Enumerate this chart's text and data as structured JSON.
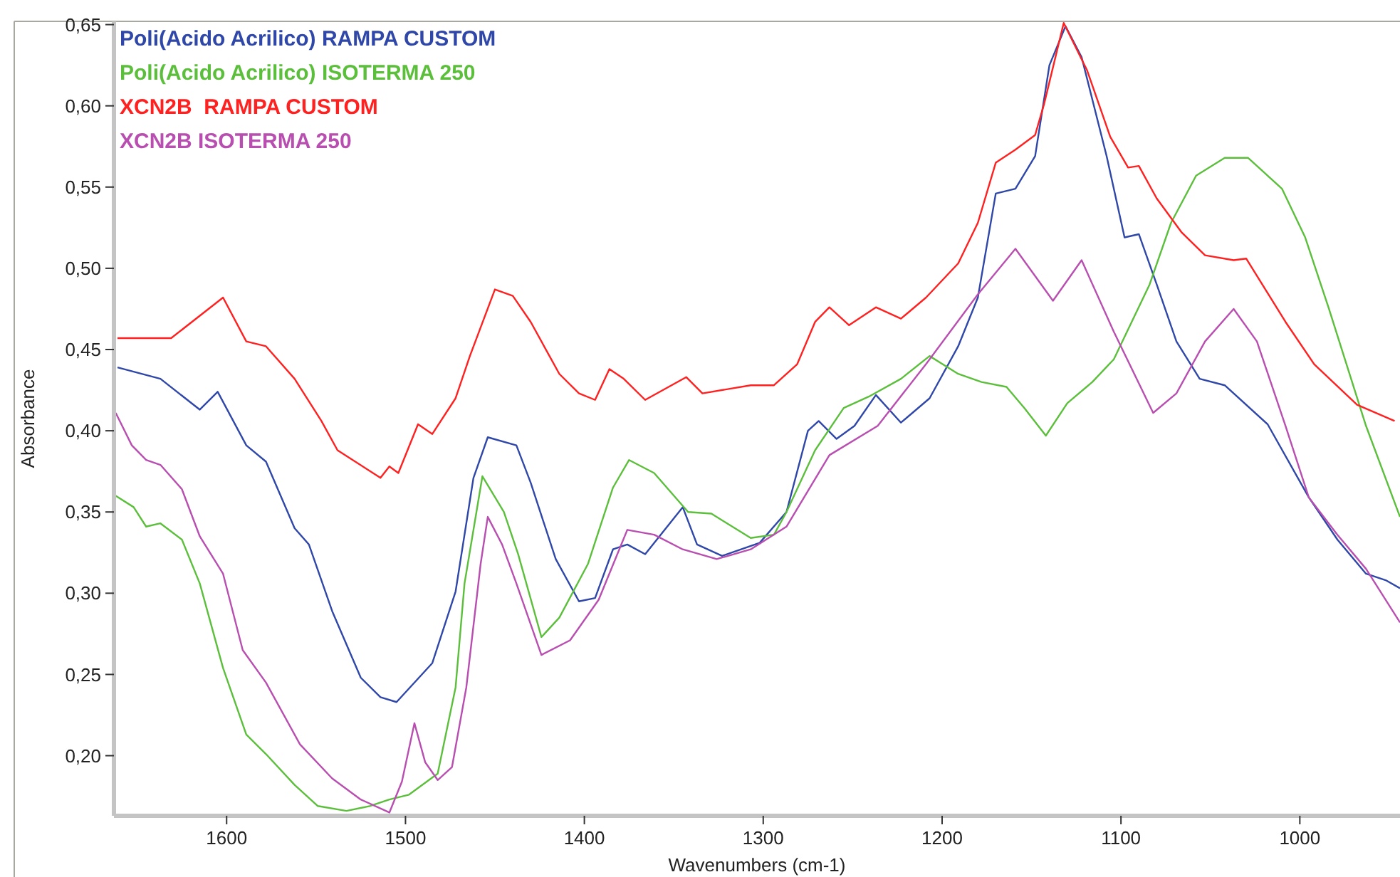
{
  "chart_data": {
    "type": "line",
    "xlabel": "Wavenumbers (cm-1)",
    "ylabel": "Absorbance",
    "xlim": [
      1663,
      944
    ],
    "ylim": [
      0.163,
      0.652
    ],
    "xticks": [
      1600,
      1500,
      1400,
      1300,
      1200,
      1100,
      1000
    ],
    "yticks": [
      {
        "value": 0.2,
        "label": "0,20"
      },
      {
        "value": 0.25,
        "label": "0,25"
      },
      {
        "value": 0.3,
        "label": "0,30"
      },
      {
        "value": 0.35,
        "label": "0,35"
      },
      {
        "value": 0.4,
        "label": "0,40"
      },
      {
        "value": 0.45,
        "label": "0,45"
      },
      {
        "value": 0.5,
        "label": "0,50"
      },
      {
        "value": 0.55,
        "label": "0,55"
      },
      {
        "value": 0.6,
        "label": "0,60"
      },
      {
        "value": 0.65,
        "label": "0,65"
      }
    ],
    "legend": "top left",
    "grid": false,
    "marker": "none",
    "line_style": "solid",
    "series": [
      {
        "name": "Poli(Acido Acrilico) RAMPA CUSTOM",
        "color": "#2f47a8",
        "x": [
          1661,
          1637,
          1615,
          1605,
          1589,
          1578,
          1562,
          1554,
          1541,
          1525,
          1514,
          1505,
          1485,
          1472,
          1462,
          1454,
          1438,
          1430,
          1416,
          1403,
          1394,
          1384,
          1376,
          1366,
          1345,
          1337,
          1323,
          1302,
          1287,
          1275,
          1269,
          1259,
          1249,
          1237,
          1223,
          1207,
          1191,
          1180,
          1170,
          1159,
          1148,
          1140,
          1131,
          1122,
          1108,
          1098,
          1090,
          1080,
          1069,
          1056,
          1042,
          1018,
          995,
          979,
          963,
          952,
          944
        ],
        "values": [
          0.439,
          0.432,
          0.413,
          0.424,
          0.391,
          0.381,
          0.34,
          0.33,
          0.289,
          0.248,
          0.236,
          0.233,
          0.257,
          0.301,
          0.371,
          0.396,
          0.391,
          0.368,
          0.321,
          0.295,
          0.297,
          0.327,
          0.33,
          0.324,
          0.353,
          0.33,
          0.323,
          0.331,
          0.35,
          0.4,
          0.406,
          0.395,
          0.403,
          0.422,
          0.405,
          0.42,
          0.452,
          0.482,
          0.546,
          0.549,
          0.569,
          0.625,
          0.649,
          0.63,
          0.569,
          0.519,
          0.521,
          0.49,
          0.455,
          0.432,
          0.428,
          0.404,
          0.359,
          0.333,
          0.312,
          0.308,
          0.303
        ]
      },
      {
        "name": "Poli(Acido Acrilico) ISOTERMA 250",
        "color": "#5cbf3c",
        "x": [
          1662,
          1652,
          1645,
          1637,
          1625,
          1615,
          1602,
          1589,
          1578,
          1562,
          1549,
          1533,
          1520,
          1509,
          1498,
          1482,
          1472,
          1467,
          1457,
          1445,
          1437,
          1424,
          1414,
          1398,
          1384,
          1375,
          1361,
          1342,
          1329,
          1307,
          1294,
          1287,
          1271,
          1255,
          1241,
          1223,
          1207,
          1191,
          1178,
          1164,
          1154,
          1142,
          1130,
          1116,
          1104,
          1084,
          1072,
          1058,
          1042,
          1029,
          1010,
          997,
          984,
          963,
          944
        ],
        "values": [
          0.36,
          0.353,
          0.341,
          0.343,
          0.333,
          0.306,
          0.254,
          0.213,
          0.201,
          0.182,
          0.169,
          0.166,
          0.169,
          0.173,
          0.176,
          0.189,
          0.242,
          0.306,
          0.372,
          0.35,
          0.324,
          0.273,
          0.285,
          0.318,
          0.365,
          0.382,
          0.374,
          0.35,
          0.349,
          0.334,
          0.336,
          0.35,
          0.388,
          0.414,
          0.421,
          0.432,
          0.446,
          0.435,
          0.43,
          0.427,
          0.414,
          0.397,
          0.417,
          0.43,
          0.444,
          0.49,
          0.528,
          0.557,
          0.568,
          0.568,
          0.549,
          0.519,
          0.476,
          0.403,
          0.347
        ]
      },
      {
        "name": "XCN2B  RAMPA CUSTOM",
        "color": "#ff2020",
        "x": [
          1661,
          1631,
          1602,
          1589,
          1578,
          1562,
          1547,
          1538,
          1514,
          1509,
          1504,
          1493,
          1485,
          1472,
          1464,
          1450,
          1440,
          1430,
          1414,
          1403,
          1394,
          1386,
          1378,
          1366,
          1343,
          1334,
          1307,
          1294,
          1281,
          1271,
          1263,
          1252,
          1237,
          1223,
          1209,
          1191,
          1180,
          1170,
          1159,
          1148,
          1143,
          1132,
          1119,
          1106,
          1096,
          1090,
          1080,
          1066,
          1053,
          1037,
          1030,
          1008,
          992,
          968,
          947
        ],
        "values": [
          0.457,
          0.457,
          0.482,
          0.455,
          0.452,
          0.432,
          0.406,
          0.388,
          0.371,
          0.378,
          0.374,
          0.404,
          0.398,
          0.42,
          0.446,
          0.487,
          0.483,
          0.467,
          0.435,
          0.423,
          0.419,
          0.438,
          0.432,
          0.419,
          0.433,
          0.423,
          0.428,
          0.428,
          0.441,
          0.467,
          0.476,
          0.465,
          0.476,
          0.469,
          0.482,
          0.503,
          0.528,
          0.565,
          0.573,
          0.582,
          0.601,
          0.651,
          0.622,
          0.581,
          0.562,
          0.563,
          0.543,
          0.522,
          0.508,
          0.505,
          0.506,
          0.467,
          0.441,
          0.416,
          0.406
        ]
      },
      {
        "name": "XCN2B ISOTERMA 250",
        "color": "#b84fb0",
        "x": [
          1662,
          1653,
          1645,
          1637,
          1625,
          1615,
          1602,
          1591,
          1578,
          1559,
          1541,
          1525,
          1509,
          1502,
          1495,
          1489,
          1482,
          1474,
          1466,
          1458,
          1454,
          1446,
          1438,
          1424,
          1408,
          1392,
          1376,
          1361,
          1345,
          1326,
          1307,
          1287,
          1263,
          1236,
          1209,
          1180,
          1159,
          1138,
          1122,
          1104,
          1082,
          1069,
          1053,
          1037,
          1024,
          1008,
          995,
          979,
          963,
          944
        ],
        "values": [
          0.411,
          0.391,
          0.382,
          0.379,
          0.364,
          0.335,
          0.312,
          0.265,
          0.245,
          0.207,
          0.186,
          0.173,
          0.165,
          0.184,
          0.22,
          0.196,
          0.185,
          0.193,
          0.242,
          0.318,
          0.347,
          0.33,
          0.306,
          0.262,
          0.271,
          0.296,
          0.339,
          0.336,
          0.327,
          0.321,
          0.327,
          0.341,
          0.385,
          0.403,
          0.441,
          0.484,
          0.512,
          0.48,
          0.505,
          0.461,
          0.411,
          0.423,
          0.455,
          0.475,
          0.455,
          0.403,
          0.359,
          0.336,
          0.315,
          0.282
        ]
      }
    ]
  }
}
